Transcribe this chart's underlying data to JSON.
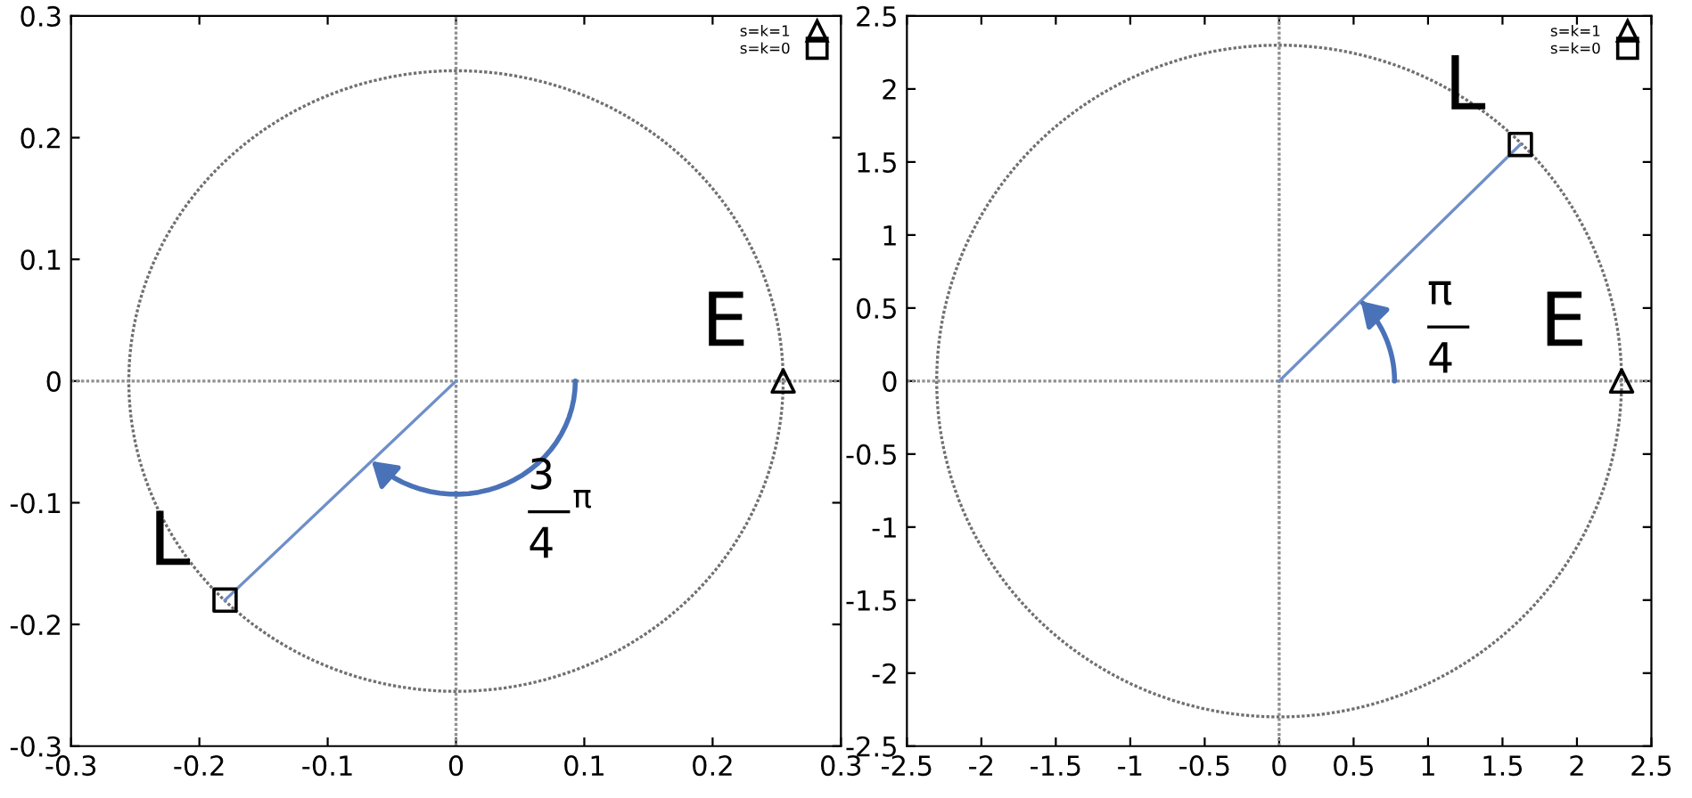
{
  "chart_data": [
    {
      "type": "scatter",
      "xlim": [
        -0.3,
        0.3
      ],
      "ylim": [
        -0.3,
        0.3
      ],
      "xticks": [
        -0.3,
        -0.2,
        -0.1,
        0,
        0.1,
        0.2,
        0.3
      ],
      "yticks": [
        -0.3,
        -0.2,
        -0.1,
        0,
        0.1,
        0.2,
        0.3
      ],
      "grid": false,
      "legend": "top right",
      "series": [
        {
          "type": "line",
          "line_style": "dotted",
          "marker": "none",
          "color": "#909090",
          "x": [
            -0.3,
            0.3
          ],
          "values": [
            0,
            0
          ]
        },
        {
          "type": "line",
          "line_style": "dotted",
          "marker": "none",
          "color": "#909090",
          "x": [
            0,
            0
          ],
          "values": [
            -0.3,
            0.3
          ]
        },
        {
          "type": "line",
          "line_style": "solid",
          "marker": "none",
          "color": "#6f8fc8",
          "x": [
            0,
            -0.18
          ],
          "values": [
            0,
            -0.18
          ]
        },
        {
          "name": "s=k=1",
          "marker": "triangle",
          "color": "#000000",
          "x": [
            0.255
          ],
          "values": [
            0
          ]
        },
        {
          "name": "s=k=0",
          "marker": "square",
          "color": "#000000",
          "x": [
            -0.18
          ],
          "values": [
            -0.18
          ]
        }
      ],
      "annotations": [
        {
          "text": "L",
          "x": -0.18,
          "y": -0.18
        },
        {
          "text": "E",
          "x": 0.255,
          "y": 0
        },
        "3\n―\n4",
        "π"
      ]
    },
    {
      "type": "scatter",
      "xlim": [
        -2.5,
        2.5
      ],
      "ylim": [
        -2.5,
        2.5
      ],
      "xticks": [
        -2.5,
        -2,
        -1.5,
        -1,
        -0.5,
        0,
        0.5,
        1,
        1.5,
        2,
        2.5
      ],
      "yticks": [
        -2.5,
        -2,
        -1.5,
        -1,
        -0.5,
        0,
        0.5,
        1,
        1.5,
        2,
        2.5
      ],
      "grid": false,
      "legend": "top right",
      "series": [
        {
          "type": "line",
          "line_style": "dotted",
          "marker": "none",
          "color": "#909090",
          "x": [
            -2.5,
            2.5
          ],
          "values": [
            0,
            0
          ]
        },
        {
          "type": "line",
          "line_style": "dotted",
          "marker": "none",
          "color": "#909090",
          "x": [
            0,
            0
          ],
          "values": [
            -2.5,
            2.5
          ]
        },
        {
          "type": "line",
          "line_style": "solid",
          "marker": "none",
          "color": "#6f8fc8",
          "x": [
            0,
            1.62
          ],
          "values": [
            0,
            1.62
          ]
        },
        {
          "name": "s=k=1",
          "marker": "triangle",
          "color": "#000000",
          "x": [
            2.3
          ],
          "values": [
            0
          ]
        },
        {
          "name": "s=k=0",
          "marker": "square",
          "color": "#000000",
          "x": [
            1.62
          ],
          "values": [
            1.62
          ]
        }
      ],
      "annotations": [
        {
          "text": "L",
          "x": 1.62,
          "y": 1.62
        },
        {
          "text": "E",
          "x": 2.3,
          "y": 0
        },
        "π\n―\n4"
      ]
    }
  ]
}
